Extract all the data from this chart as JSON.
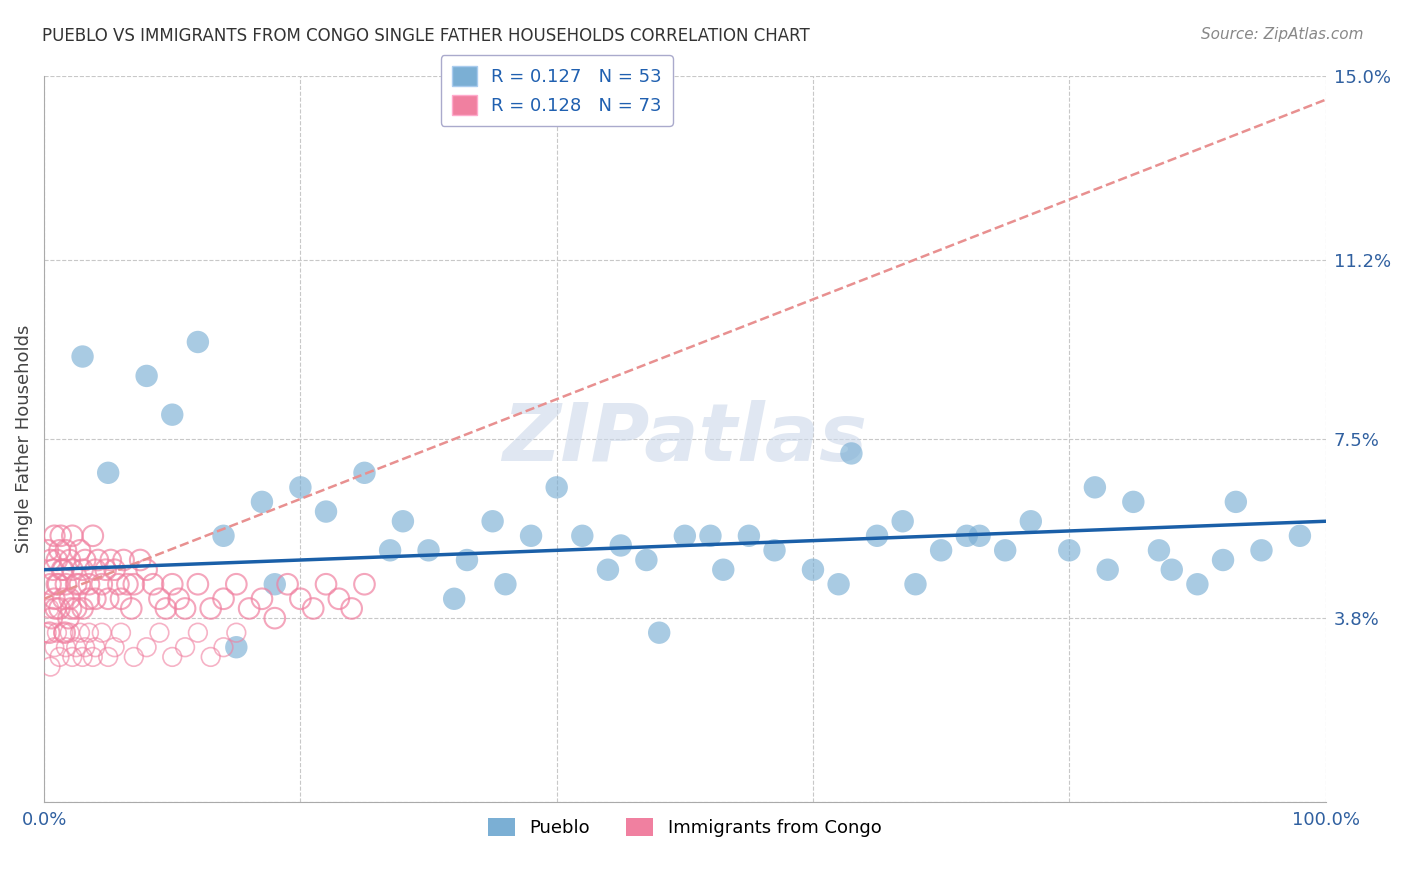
{
  "title": "PUEBLO VS IMMIGRANTS FROM CONGO SINGLE FATHER HOUSEHOLDS CORRELATION CHART",
  "source": "Source: ZipAtlas.com",
  "ylabel": "Single Father Households",
  "xlim": [
    0,
    100
  ],
  "ylim": [
    0,
    15
  ],
  "yticks": [
    0,
    3.8,
    7.5,
    11.2,
    15.0
  ],
  "ytick_labels": [
    "",
    "3.8%",
    "7.5%",
    "11.2%",
    "15.0%"
  ],
  "pueblo_color": "#7bafd4",
  "congo_color": "#f080a0",
  "pueblo_line_color": "#1a5fa8",
  "congo_line_color": "#d04060",
  "congo_dash_color": "#e89090",
  "background_color": "#ffffff",
  "grid_color": "#c8c8c8",
  "watermark": "ZIPatlas",
  "watermark_color": "#ccd8ea",
  "pueblo_x": [
    3,
    8,
    12,
    14,
    17,
    20,
    22,
    25,
    28,
    30,
    33,
    35,
    38,
    40,
    42,
    45,
    47,
    50,
    53,
    55,
    57,
    60,
    62,
    65,
    67,
    70,
    72,
    75,
    77,
    80,
    82,
    85,
    88,
    90,
    92,
    95,
    98,
    5,
    10,
    18,
    27,
    36,
    44,
    52,
    63,
    73,
    83,
    93,
    15,
    32,
    48,
    68,
    87
  ],
  "pueblo_y": [
    9.2,
    8.8,
    9.5,
    5.5,
    6.2,
    6.5,
    6.0,
    6.8,
    5.8,
    5.2,
    5.0,
    5.8,
    5.5,
    6.5,
    5.5,
    5.3,
    5.0,
    5.5,
    4.8,
    5.5,
    5.2,
    4.8,
    4.5,
    5.5,
    5.8,
    5.2,
    5.5,
    5.2,
    5.8,
    5.2,
    6.5,
    6.2,
    4.8,
    4.5,
    5.0,
    5.2,
    5.5,
    6.8,
    8.0,
    4.5,
    5.2,
    4.5,
    4.8,
    5.5,
    7.2,
    5.5,
    4.8,
    6.2,
    3.2,
    4.2,
    3.5,
    4.5,
    5.2
  ],
  "congo_x": [
    0.3,
    0.5,
    0.5,
    0.7,
    0.8,
    0.8,
    1.0,
    1.0,
    1.2,
    1.2,
    1.3,
    1.5,
    1.5,
    1.7,
    1.7,
    2.0,
    2.0,
    2.2,
    2.2,
    2.5,
    2.5,
    2.8,
    2.8,
    3.0,
    3.0,
    3.2,
    3.5,
    3.5,
    3.8,
    4.0,
    4.0,
    4.2,
    4.5,
    4.8,
    5.0,
    5.2,
    5.5,
    5.8,
    6.0,
    6.2,
    6.5,
    6.8,
    7.0,
    7.5,
    8.0,
    8.5,
    9.0,
    9.5,
    10.0,
    10.5,
    11.0,
    12.0,
    13.0,
    14.0,
    15.0,
    16.0,
    17.0,
    18.0,
    19.0,
    20.0,
    21.0,
    22.0,
    23.0,
    24.0,
    25.0,
    0.4,
    0.6,
    0.9,
    1.1,
    1.4,
    1.6,
    1.9,
    2.1
  ],
  "congo_y": [
    5.2,
    5.0,
    4.5,
    4.8,
    5.5,
    4.2,
    5.0,
    4.5,
    5.2,
    4.0,
    5.5,
    4.8,
    4.2,
    5.2,
    4.5,
    5.0,
    4.2,
    5.5,
    4.8,
    4.5,
    4.0,
    5.2,
    4.5,
    4.8,
    4.0,
    5.0,
    4.5,
    4.2,
    5.5,
    4.8,
    4.2,
    5.0,
    4.5,
    4.8,
    4.2,
    5.0,
    4.8,
    4.5,
    4.2,
    5.0,
    4.5,
    4.0,
    4.5,
    5.0,
    4.8,
    4.5,
    4.2,
    4.0,
    4.5,
    4.2,
    4.0,
    4.5,
    4.0,
    4.2,
    4.5,
    4.0,
    4.2,
    3.8,
    4.5,
    4.2,
    4.0,
    4.5,
    4.2,
    4.0,
    4.5,
    3.5,
    3.8,
    4.0,
    4.5,
    4.8,
    3.5,
    3.8,
    4.0
  ],
  "congo_extra_x": [
    0.2,
    0.4,
    0.5,
    0.8,
    1.0,
    1.2,
    1.5,
    1.7,
    2.0,
    2.2,
    2.5,
    2.8,
    3.0,
    3.2,
    3.5,
    3.8,
    4.0,
    4.5,
    5.0,
    5.5,
    6.0,
    7.0,
    8.0,
    9.0,
    10.0,
    11.0,
    12.0,
    13.0,
    14.0,
    15.0
  ],
  "congo_extra_y": [
    3.5,
    4.0,
    2.8,
    3.2,
    3.5,
    3.0,
    3.5,
    3.2,
    3.5,
    3.0,
    3.2,
    3.5,
    3.0,
    3.2,
    3.5,
    3.0,
    3.2,
    3.5,
    3.0,
    3.2,
    3.5,
    3.0,
    3.2,
    3.5,
    3.0,
    3.2,
    3.5,
    3.0,
    3.2,
    3.5
  ],
  "pueblo_trend_x0": 0,
  "pueblo_trend_x1": 100,
  "pueblo_trend_y0": 4.8,
  "pueblo_trend_y1": 5.8,
  "congo_trend_x0": 0,
  "congo_trend_x1": 100,
  "congo_trend_y0": 4.2,
  "congo_trend_y1": 14.5,
  "legend_label_1": "R = 0.127   N = 53",
  "legend_label_2": "R = 0.128   N = 73",
  "bottom_label_1": "Pueblo",
  "bottom_label_2": "Immigrants from Congo"
}
